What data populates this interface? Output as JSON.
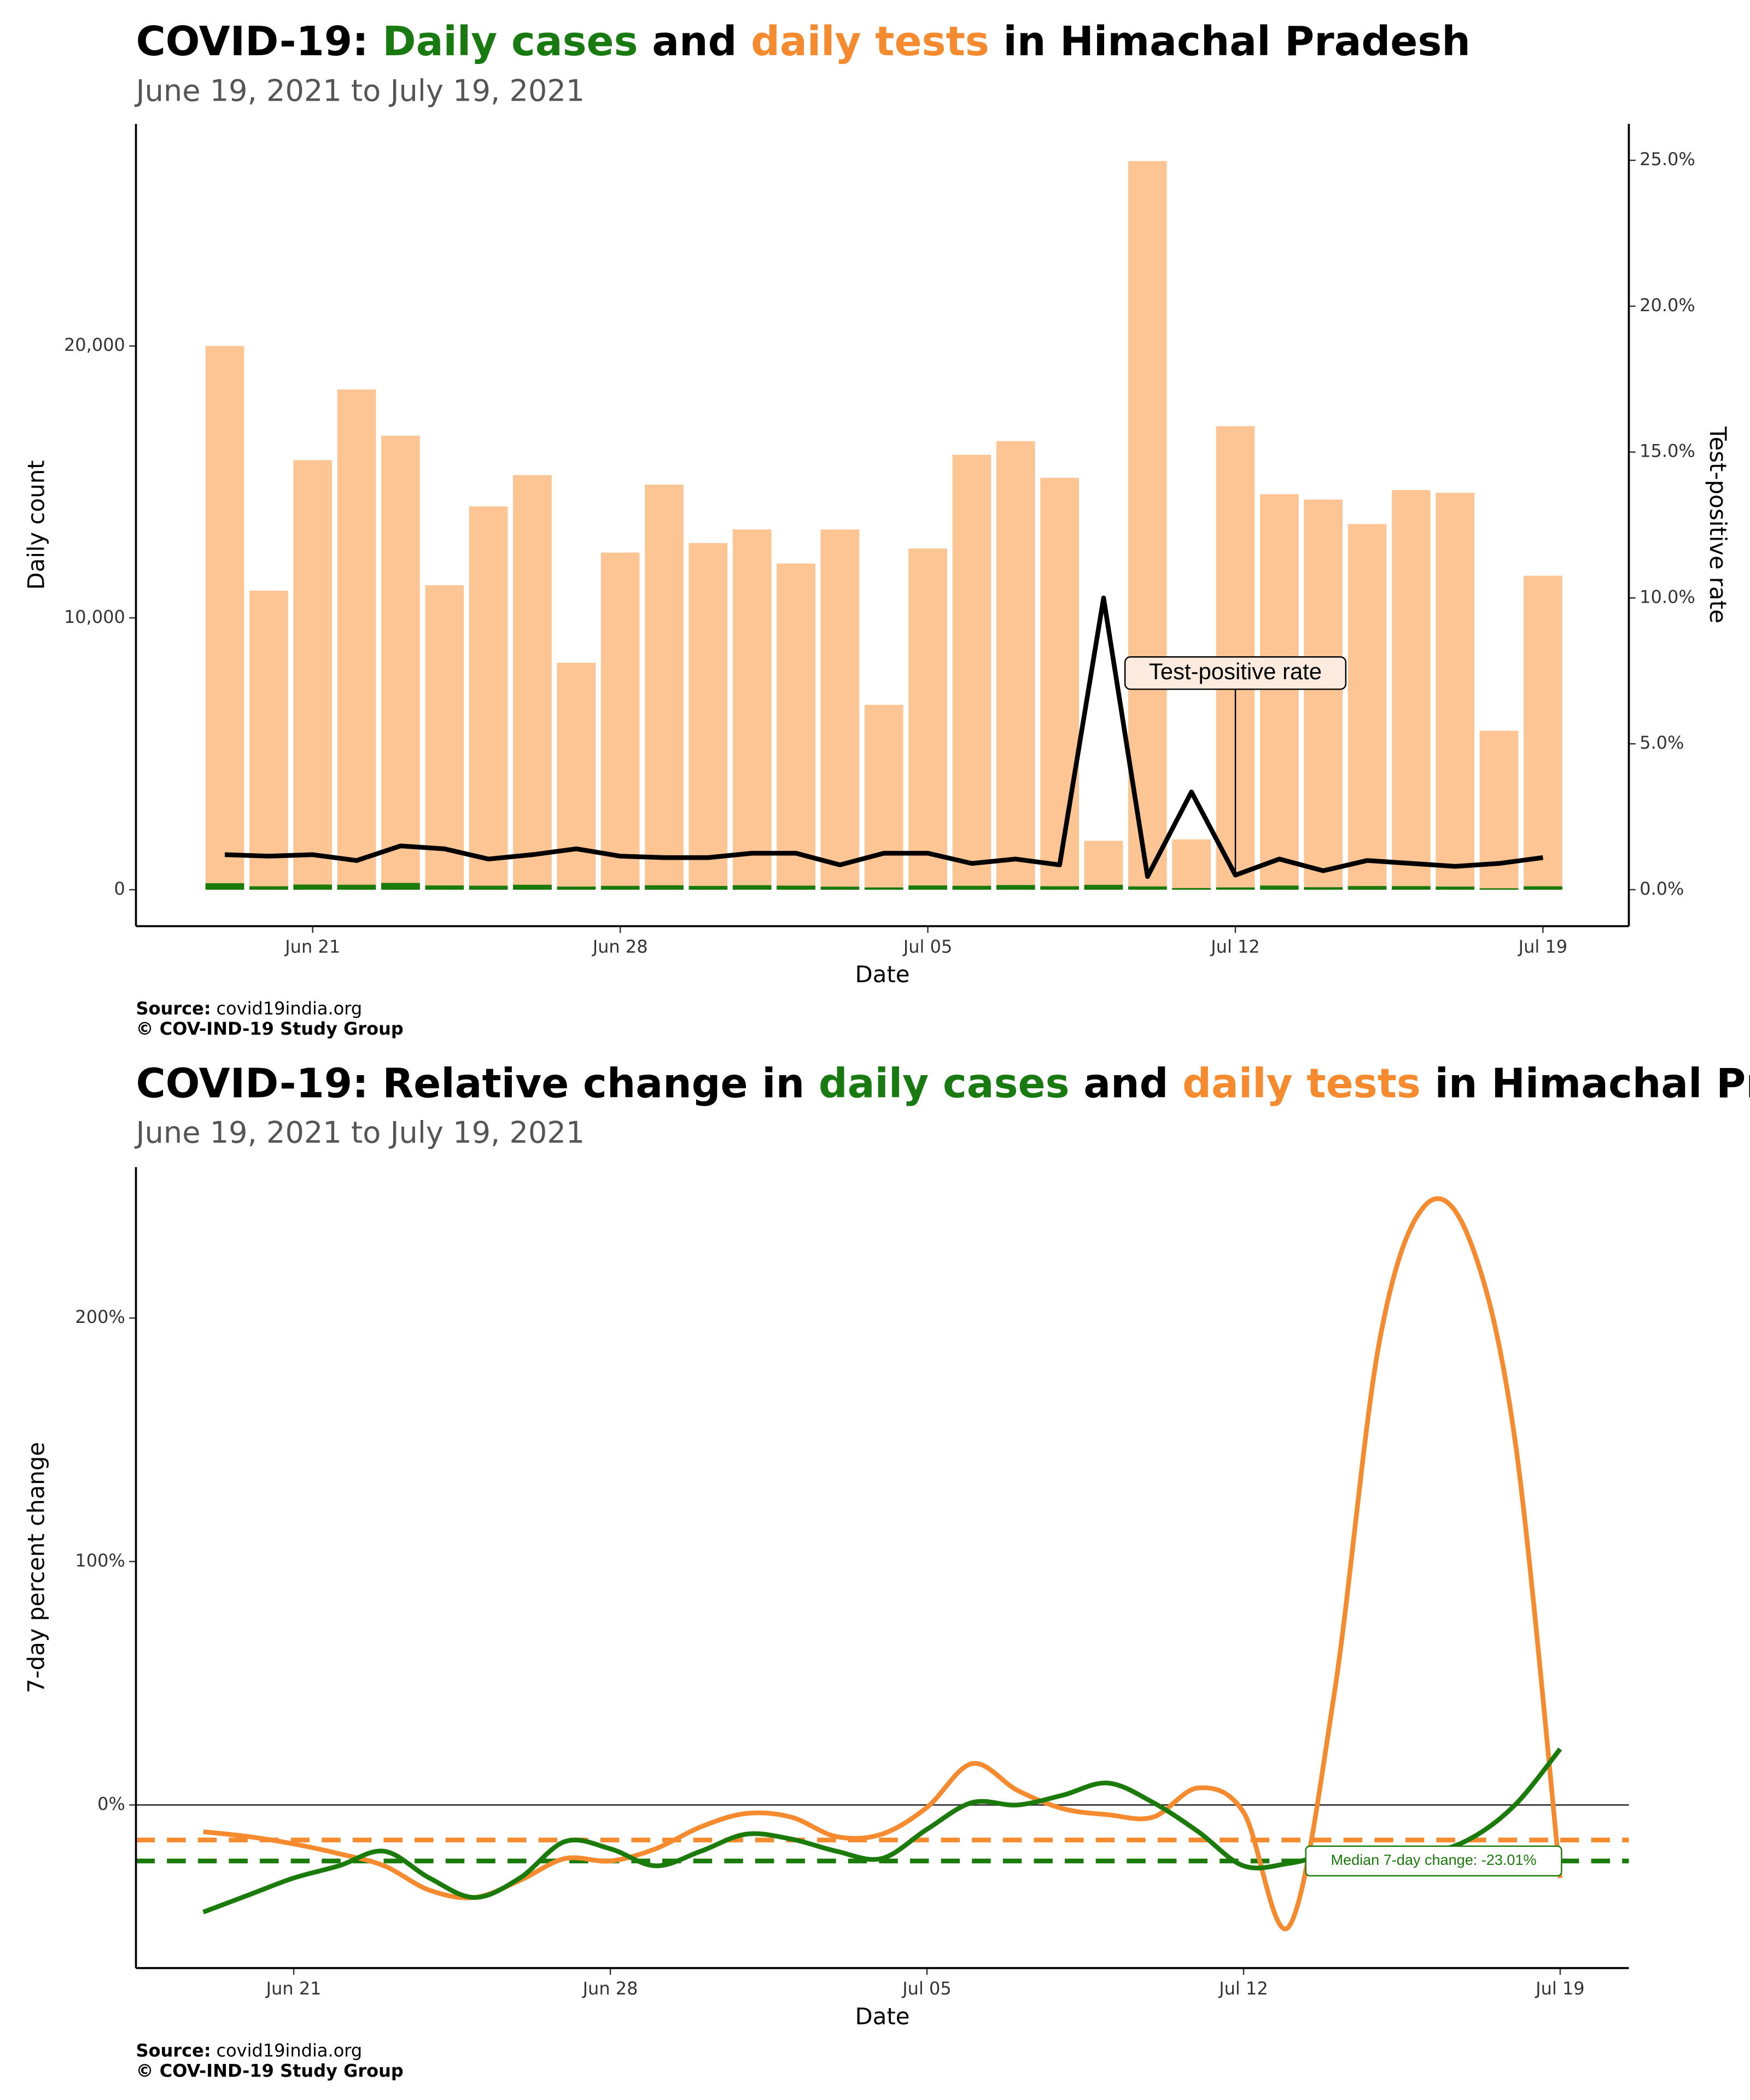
{
  "chart_data": [
    {
      "type": "bar",
      "title": [
        {
          "text": "COVID-19: ",
          "color": "#000000"
        },
        {
          "text": "Daily cases",
          "color": "#1a7a12"
        },
        {
          "text": " and ",
          "color": "#000000"
        },
        {
          "text": "daily tests",
          "color": "#f58a2f"
        },
        {
          "text": " in Himachal Pradesh",
          "color": "#000000"
        }
      ],
      "subtitle": "June 19, 2021 to July 19, 2021",
      "xlabel": "Date",
      "ylabel": "Daily count",
      "y2label": "Test-positive rate",
      "x": [
        "Jun 19",
        "Jun 20",
        "Jun 21",
        "Jun 22",
        "Jun 23",
        "Jun 24",
        "Jun 25",
        "Jun 26",
        "Jun 27",
        "Jun 28",
        "Jun 29",
        "Jun 30",
        "Jul 01",
        "Jul 02",
        "Jul 03",
        "Jul 04",
        "Jul 05",
        "Jul 06",
        "Jul 07",
        "Jul 08",
        "Jul 09",
        "Jul 10",
        "Jul 11",
        "Jul 12",
        "Jul 13",
        "Jul 14",
        "Jul 15",
        "Jul 16",
        "Jul 17",
        "Jul 18",
        "Jul 19"
      ],
      "xticks": [
        "Jun 21",
        "Jun 28",
        "Jul 05",
        "Jul 12",
        "Jul 19"
      ],
      "ylim": [
        -1340,
        28170
      ],
      "yticks": [
        0,
        {
          "value": 10000,
          "label": "10,000"
        },
        {
          "value": 20000,
          "label": "20,000"
        }
      ],
      "y2lim": [
        -1.25,
        26.25
      ],
      "y2ticks": [
        {
          "value": 0,
          "label": "0.0%"
        },
        {
          "value": 5,
          "label": "5.0%"
        },
        {
          "value": 10,
          "label": "10.0%"
        },
        {
          "value": 15,
          "label": "15.0%"
        },
        {
          "value": 20,
          "label": "20.0%"
        },
        {
          "value": 25,
          "label": "25.0%"
        }
      ],
      "series": [
        {
          "type": "bar",
          "color": "#fdc494",
          "values": [
            20000,
            11000,
            15800,
            18400,
            16700,
            11200,
            14100,
            15250,
            8350,
            12400,
            14900,
            12750,
            13250,
            12000,
            13250,
            6800,
            12550,
            16000,
            16500,
            15150,
            1800,
            26800,
            1850,
            17050,
            14550,
            14350,
            13450,
            14700,
            14600,
            5850,
            11550
          ]
        },
        {
          "type": "bar",
          "color": "#1a7a0a",
          "values": [
            240,
            127,
            190,
            184,
            250,
            157,
            148,
            183,
            117,
            143,
            164,
            140,
            166,
            150,
            113,
            85,
            157,
            144,
            173,
            129,
            180,
            121,
            62,
            85,
            153,
            93,
            135,
            132,
            117,
            53,
            127
          ]
        },
        {
          "type": "line",
          "axis": "y2",
          "name": "Test-positive rate",
          "color": "#000000",
          "values": [
            1.2,
            1.15,
            1.2,
            1.0,
            1.5,
            1.4,
            1.05,
            1.2,
            1.4,
            1.15,
            1.1,
            1.1,
            1.25,
            1.25,
            0.85,
            1.25,
            1.25,
            0.9,
            1.05,
            0.85,
            10.0,
            0.45,
            3.35,
            0.5,
            1.05,
            0.65,
            1.0,
            0.9,
            0.8,
            0.9,
            1.1
          ]
        }
      ],
      "source_label": "Source:",
      "source": "covid19india.org",
      "credit": "© COV-IND-19 Study Group"
    },
    {
      "type": "line",
      "title": [
        {
          "text": "COVID-19: Relative change in ",
          "color": "#000000"
        },
        {
          "text": "daily cases",
          "color": "#1a7a12"
        },
        {
          "text": " and ",
          "color": "#000000"
        },
        {
          "text": "daily tests",
          "color": "#f58a2f"
        },
        {
          "text": " in Himachal Pradesh",
          "color": "#000000"
        }
      ],
      "subtitle": "June 19, 2021 to July 19, 2021",
      "xlabel": "Date",
      "ylabel": "7-day percent change",
      "x": [
        "Jun 19",
        "Jun 20",
        "Jun 21",
        "Jun 22",
        "Jun 23",
        "Jun 24",
        "Jun 25",
        "Jun 26",
        "Jun 27",
        "Jun 28",
        "Jun 29",
        "Jun 30",
        "Jul 01",
        "Jul 02",
        "Jul 03",
        "Jul 04",
        "Jul 05",
        "Jul 06",
        "Jul 07",
        "Jul 08",
        "Jul 09",
        "Jul 10",
        "Jul 11",
        "Jul 12",
        "Jul 13",
        "Jul 14",
        "Jul 15",
        "Jul 16",
        "Jul 17",
        "Jul 18",
        "Jul 19"
      ],
      "xticks": [
        "Jun 21",
        "Jun 28",
        "Jul 05",
        "Jul 12",
        "Jul 19"
      ],
      "ylim": [
        -67,
        262
      ],
      "yticks": [
        {
          "value": 0,
          "label": "0%"
        },
        {
          "value": 100,
          "label": "100%"
        },
        {
          "value": 200,
          "label": "200%"
        }
      ],
      "series": [
        {
          "color": "#f58a2f",
          "median": -14.4,
          "values": [
            -11,
            -13,
            -16,
            -20,
            -25,
            -35,
            -38,
            -31,
            -22,
            -23,
            -18,
            -9,
            -3.5,
            -5,
            -13,
            -12,
            -1,
            17,
            6,
            -1.5,
            -4,
            -5,
            7,
            -3,
            -50,
            45,
            190,
            246,
            232,
            150,
            -30
          ]
        },
        {
          "color": "#1a7a0a",
          "median": -23.01,
          "values": [
            -44,
            -37,
            -30,
            -25,
            -19,
            -30,
            -38,
            -30,
            -15,
            -18,
            -25,
            -19,
            -12,
            -14,
            -19,
            -22,
            -10,
            1,
            0,
            4,
            9,
            1,
            -11,
            -25,
            -24,
            -20,
            -19,
            -20,
            -14,
            0,
            23
          ]
        }
      ],
      "annotation": "Median 7-day change: -23.01%",
      "source_label": "Source:",
      "source": "covid19india.org",
      "credit": "© COV-IND-19 Study Group"
    }
  ]
}
